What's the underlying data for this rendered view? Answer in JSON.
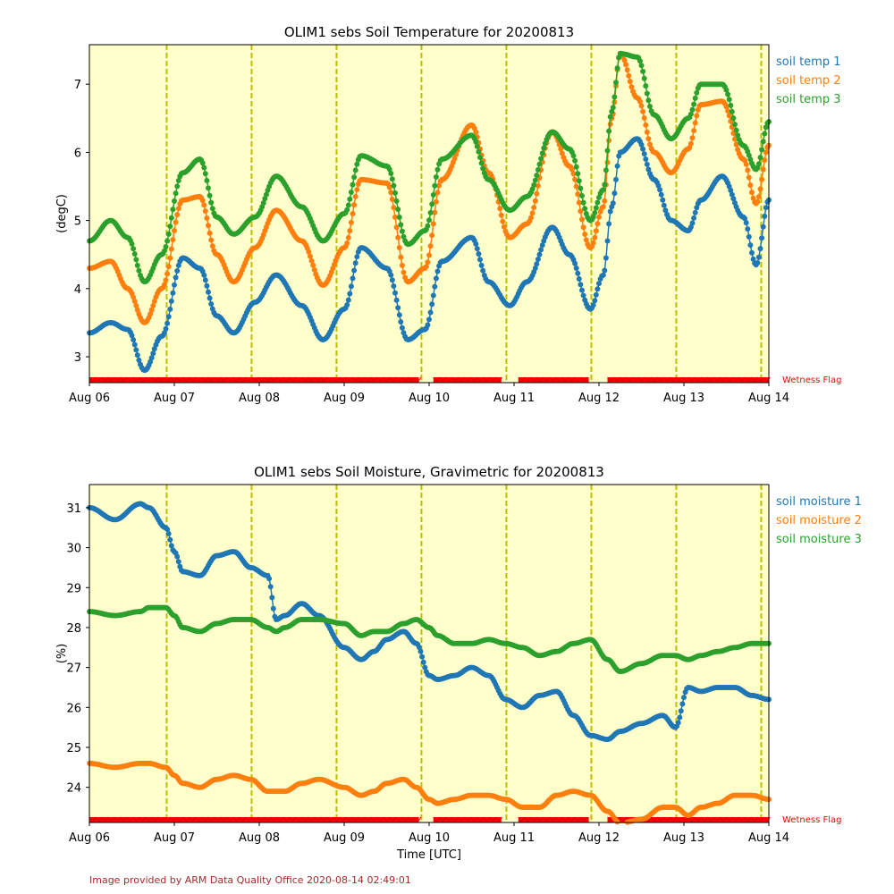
{
  "footer": "Image provided by ARM Data Quality Office 2020-08-14 02:49:01",
  "colors": {
    "series1": "#1f77b4",
    "series2": "#ff7f0e",
    "series3": "#2ca02c",
    "background_fill": "#ffffcc",
    "day_lines": "#bfbf00",
    "wetness_flag": "#ff0000"
  },
  "chart_data": [
    {
      "type": "line",
      "title": "OLIM1 sebs Soil Temperature for 20200813",
      "xlabel": "",
      "ylabel": "(degC)",
      "xlim": [
        "2020-08-06",
        "2020-08-14"
      ],
      "ylim": [
        2.62,
        7.58
      ],
      "x_ticks": [
        "Aug 06",
        "Aug 07",
        "Aug 08",
        "Aug 09",
        "Aug 10",
        "Aug 11",
        "Aug 12",
        "Aug 13",
        "Aug 14"
      ],
      "y_ticks": [
        3,
        4,
        5,
        6,
        7
      ],
      "legend_placement": "right",
      "day_boundaries_days": [
        0.91,
        1.91,
        2.91,
        3.91,
        4.91,
        5.91,
        6.91,
        7.91
      ],
      "flag_label": "Wetness Flag",
      "flag_intervals_days": [
        [
          0.0,
          3.88
        ],
        [
          4.05,
          4.85
        ],
        [
          5.05,
          5.88
        ],
        [
          6.1,
          8.0
        ]
      ],
      "x_days": [
        0,
        0.25,
        0.45,
        0.65,
        0.85,
        1.1,
        1.3,
        1.5,
        1.7,
        1.95,
        2.2,
        2.5,
        2.75,
        3.0,
        3.2,
        3.5,
        3.75,
        3.95,
        4.15,
        4.5,
        4.7,
        4.95,
        5.15,
        5.45,
        5.65,
        5.9,
        6.05,
        6.15,
        6.25,
        6.45,
        6.65,
        6.85,
        7.05,
        7.2,
        7.45,
        7.7,
        7.85,
        8.0
      ],
      "series": [
        {
          "name": "soil temp 1",
          "values": [
            3.35,
            3.5,
            3.4,
            2.8,
            3.3,
            4.45,
            4.3,
            3.6,
            3.35,
            3.8,
            4.2,
            3.75,
            3.25,
            3.7,
            4.6,
            4.3,
            3.25,
            3.4,
            4.4,
            4.75,
            4.1,
            3.75,
            4.1,
            4.9,
            4.5,
            3.7,
            4.2,
            5.2,
            6.0,
            6.2,
            5.6,
            5.0,
            4.85,
            5.3,
            5.65,
            5.05,
            4.35,
            5.3
          ]
        },
        {
          "name": "soil temp 2",
          "values": [
            4.3,
            4.4,
            4.0,
            3.5,
            4.0,
            5.3,
            5.35,
            4.5,
            4.1,
            4.6,
            5.15,
            4.7,
            4.05,
            4.6,
            5.6,
            5.55,
            4.1,
            4.3,
            5.6,
            6.4,
            5.7,
            4.75,
            4.95,
            6.3,
            5.8,
            4.6,
            5.2,
            6.5,
            7.45,
            6.8,
            6.0,
            5.7,
            6.05,
            6.7,
            6.75,
            5.9,
            5.25,
            6.1
          ]
        },
        {
          "name": "soil temp 3",
          "values": [
            4.7,
            5.0,
            4.75,
            4.1,
            4.5,
            5.7,
            5.9,
            5.05,
            4.8,
            5.05,
            5.65,
            5.2,
            4.7,
            5.1,
            5.95,
            5.8,
            4.65,
            4.85,
            5.9,
            6.25,
            5.6,
            5.15,
            5.35,
            6.3,
            6.05,
            5.0,
            5.45,
            6.6,
            7.45,
            7.4,
            6.55,
            6.2,
            6.5,
            7.0,
            7.0,
            6.1,
            5.75,
            6.45
          ]
        }
      ]
    },
    {
      "type": "line",
      "title": "OLIM1 sebs Soil Moisture, Gravimetric for 20200813",
      "xlabel": "Time [UTC]",
      "ylabel": "(%)",
      "xlim": [
        "2020-08-06",
        "2020-08-14"
      ],
      "ylim": [
        23.12,
        31.58
      ],
      "x_ticks": [
        "Aug 06",
        "Aug 07",
        "Aug 08",
        "Aug 09",
        "Aug 10",
        "Aug 11",
        "Aug 12",
        "Aug 13",
        "Aug 14"
      ],
      "y_ticks": [
        24,
        25,
        26,
        27,
        28,
        29,
        30,
        31
      ],
      "legend_placement": "right",
      "day_boundaries_days": [
        0.91,
        1.91,
        2.91,
        3.91,
        4.91,
        5.91,
        6.91,
        7.91
      ],
      "flag_label": "Wetness Flag",
      "flag_intervals_days": [
        [
          0.0,
          3.88
        ],
        [
          4.05,
          4.85
        ],
        [
          5.05,
          5.88
        ],
        [
          6.1,
          8.0
        ]
      ],
      "x_days": [
        0,
        0.3,
        0.6,
        0.7,
        0.9,
        1.0,
        1.1,
        1.3,
        1.5,
        1.7,
        1.9,
        2.1,
        2.2,
        2.3,
        2.5,
        2.7,
        3.0,
        3.2,
        3.35,
        3.5,
        3.7,
        3.85,
        4.0,
        4.1,
        4.3,
        4.5,
        4.7,
        4.9,
        5.1,
        5.3,
        5.5,
        5.7,
        5.9,
        6.1,
        6.25,
        6.5,
        6.75,
        6.9,
        7.05,
        7.2,
        7.4,
        7.6,
        7.8,
        8.0
      ],
      "series": [
        {
          "name": "soil moisture 1",
          "values": [
            31.0,
            30.7,
            31.1,
            31.0,
            30.5,
            29.9,
            29.4,
            29.3,
            29.8,
            29.9,
            29.5,
            29.3,
            28.2,
            28.3,
            28.6,
            28.3,
            27.5,
            27.2,
            27.4,
            27.7,
            27.9,
            27.6,
            26.8,
            26.7,
            26.8,
            27.0,
            26.8,
            26.2,
            26.0,
            26.3,
            26.4,
            25.8,
            25.3,
            25.2,
            25.4,
            25.6,
            25.8,
            25.5,
            26.5,
            26.4,
            26.5,
            26.5,
            26.3,
            26.2
          ]
        },
        {
          "name": "soil moisture 2",
          "values": [
            24.6,
            24.5,
            24.6,
            24.6,
            24.5,
            24.3,
            24.1,
            24.0,
            24.2,
            24.3,
            24.2,
            23.9,
            23.9,
            23.9,
            24.1,
            24.2,
            24.0,
            23.8,
            23.9,
            24.1,
            24.2,
            24.0,
            23.7,
            23.6,
            23.7,
            23.8,
            23.8,
            23.7,
            23.5,
            23.5,
            23.8,
            23.9,
            23.8,
            23.4,
            23.1,
            23.2,
            23.5,
            23.5,
            23.3,
            23.5,
            23.6,
            23.8,
            23.8,
            23.7
          ]
        },
        {
          "name": "soil moisture 3",
          "values": [
            28.4,
            28.3,
            28.4,
            28.5,
            28.5,
            28.3,
            28.0,
            27.9,
            28.1,
            28.2,
            28.2,
            28.0,
            27.9,
            28.0,
            28.2,
            28.2,
            28.1,
            27.8,
            27.9,
            27.9,
            28.1,
            28.2,
            28.0,
            27.8,
            27.6,
            27.6,
            27.7,
            27.6,
            27.5,
            27.3,
            27.4,
            27.6,
            27.7,
            27.2,
            26.9,
            27.1,
            27.3,
            27.3,
            27.2,
            27.3,
            27.4,
            27.5,
            27.6,
            27.6
          ]
        }
      ]
    }
  ]
}
